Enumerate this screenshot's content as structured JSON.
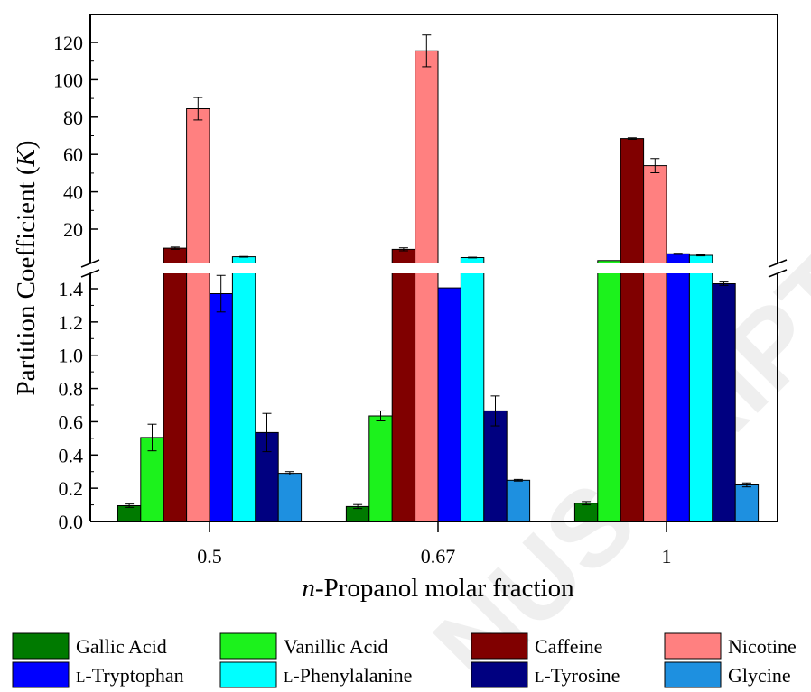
{
  "chart_data": {
    "type": "bar",
    "title": "",
    "xlabel": "Propanol molar fraction",
    "xlabel_prefix": "n",
    "ylabel": "Partition Coefficient (",
    "ylabel_var": "K",
    "ylabel_suffix": ")",
    "categories": [
      "0.5",
      "0.67",
      "1"
    ],
    "axis_break": {
      "lower_range": [
        0,
        1.55
      ],
      "upper_range": [
        3,
        130
      ]
    },
    "lower_ticks": [
      "0.0",
      "0.2",
      "0.4",
      "0.6",
      "0.8",
      "1.0",
      "1.2",
      "1.4"
    ],
    "upper_ticks": [
      "20",
      "40",
      "60",
      "80",
      "100",
      "120"
    ],
    "legend_position": "bottom",
    "series": [
      {
        "name": "Gallic Acid",
        "color": "#007a00",
        "values": [
          0.095,
          0.09,
          0.11
        ],
        "errors": [
          0.01,
          0.012,
          0.01
        ]
      },
      {
        "name": "Vanillic Acid",
        "color": "#1cf21c",
        "values": [
          0.505,
          0.635,
          3.2
        ],
        "errors": [
          0.08,
          0.03,
          0
        ]
      },
      {
        "name": "Caffeine",
        "color": "#800000",
        "values": [
          9.8,
          9.2,
          68.5
        ],
        "errors": [
          0.6,
          0.8,
          0.4
        ]
      },
      {
        "name": "Nicotine",
        "color": "#ff8080",
        "values": [
          84.5,
          115.5,
          54.0
        ],
        "errors": [
          6.0,
          8.5,
          3.8
        ]
      },
      {
        "name": "Tryptophan",
        "prefix": "L",
        "color": "#0000ff",
        "values": [
          1.37,
          1.405,
          6.8
        ],
        "errors": [
          0.11,
          0,
          0.3
        ]
      },
      {
        "name": "Phenylalanine",
        "prefix": "L",
        "color": "#00ffff",
        "values": [
          5.2,
          4.8,
          6.0
        ],
        "errors": [
          0.2,
          0.2,
          0.3
        ]
      },
      {
        "name": "Tyrosine",
        "prefix": "L",
        "color": "#000080",
        "values": [
          0.535,
          0.665,
          1.43
        ],
        "errors": [
          0.115,
          0.09,
          0.01
        ]
      },
      {
        "name": "Glycine",
        "prefix": "",
        "color": "#1e90e0",
        "values": [
          0.29,
          0.248,
          0.22
        ],
        "errors": [
          0.01,
          0.005,
          0.012
        ]
      }
    ]
  }
}
